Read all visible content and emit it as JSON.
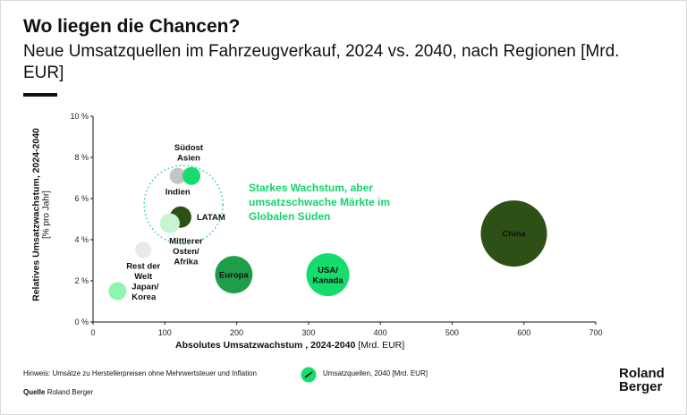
{
  "header": {
    "title": "Wo liegen die Chancen?",
    "subtitle": "Neue Umsatzquellen im Fahrzeugverkauf, 2024 vs. 2040, nach Regionen [Mrd. EUR]"
  },
  "axes": {
    "ylabel": "Relatives Umsatzwachstum, 2024-2040",
    "yunit": "[% pro Jahr]",
    "xlabel": "Absolutes Umsatzwachstum , 2024-2040",
    "xunit": "[Mrd. EUR]"
  },
  "annotation": "Starkes Wachstum, aber umsatzschwache Märkte im Globalen Süden",
  "footer": {
    "note": "Hinweis: Umsätze zu Herstellerpreisen ohne Mehrwertsteuer und Inflation",
    "legend_label": "Umsatzquellen, 2040 [Mrd. EUR]",
    "source_label": "Quelle",
    "source_value": "Roland Berger",
    "logo_line1": "Roland",
    "logo_line2": "Berger"
  },
  "colors": {
    "dark_green": "#2d5016",
    "mid_green": "#1f9e4a",
    "bright_green": "#16db6d",
    "light_green": "#8ef5b0",
    "pale_green": "#c6f5d2",
    "light_gray": "#e9e9e9",
    "gray": "#c4c4c4",
    "cluster_outline": "#18d46c"
  },
  "chart_data": {
    "type": "scatter",
    "xlim": [
      0,
      700
    ],
    "ylim": [
      0,
      10
    ],
    "xticks": [
      "0",
      "100",
      "200",
      "300",
      "400",
      "500",
      "600",
      "700"
    ],
    "yticks": [
      "0 %",
      "2 %",
      "4 %",
      "6 %",
      "8 %",
      "10 %"
    ],
    "grid": false,
    "legend": "bottom",
    "points": [
      {
        "key": "china",
        "label": [
          "China"
        ],
        "x": 586,
        "y": 4.3,
        "color": "#2d5016",
        "text_color": "#ffffff",
        "label_pos": "center"
      },
      {
        "key": "usa-kanada",
        "label": [
          "USA/",
          "Kanada"
        ],
        "x": 327,
        "y": 2.3,
        "color": "#16db6d",
        "text_color": "#111111",
        "label_pos": "center"
      },
      {
        "key": "europa",
        "label": [
          "Europa"
        ],
        "x": 196,
        "y": 2.3,
        "color": "#1f9e4a",
        "text_color": "#ffffff",
        "label_pos": "center"
      },
      {
        "key": "latam",
        "label": [
          "LATAM"
        ],
        "x": 122,
        "y": 5.1,
        "color": "#2d5016",
        "text_color": "#111111",
        "label_pos": "right"
      },
      {
        "key": "mittlerer-osten-afrika",
        "label": [
          "Mittlerer",
          "Osten/",
          "Afrika"
        ],
        "x": 107,
        "y": 4.8,
        "color": "#c6f5d2",
        "text_color": "#111111",
        "label_pos": "below-right"
      },
      {
        "key": "suedost-asien",
        "label": [
          "Südost",
          "Asien"
        ],
        "x": 137,
        "y": 7.1,
        "color": "#16db6d",
        "text_color": "#111111",
        "label_pos": "above"
      },
      {
        "key": "indien",
        "label": [
          "Indien"
        ],
        "x": 118,
        "y": 7.1,
        "color": "#c4c4c4",
        "text_color": "#111111",
        "label_pos": "below"
      },
      {
        "key": "rest-der-welt",
        "label": [
          "Rest der",
          "Welt"
        ],
        "x": 70,
        "y": 3.5,
        "color": "#e9e9e9",
        "text_color": "#111111",
        "label_pos": "below"
      },
      {
        "key": "japan-korea",
        "label": [
          "Japan/",
          "Korea"
        ],
        "x": 34,
        "y": 1.5,
        "color": "#8ef5b0",
        "text_color": "#111111",
        "label_pos": "right"
      }
    ]
  }
}
